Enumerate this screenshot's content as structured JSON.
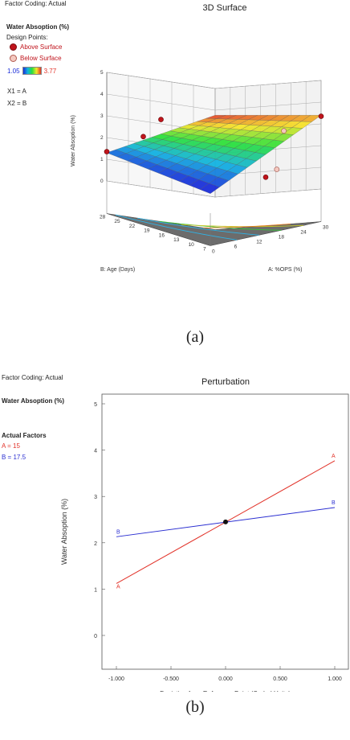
{
  "panel_a": {
    "factor_coding": "Factor Coding: Actual",
    "response_title": "Water Absoption (%)",
    "design_points_label": "Design Points:",
    "above_label": "Above Surface",
    "below_label": "Below Surface",
    "range_min": "1.05",
    "range_max": "3.77",
    "x1_label": "X1 = A",
    "x2_label": "X2 = B",
    "caption": "(a)",
    "colors": {
      "above": "#c0141c",
      "below": "#f4c9c0",
      "range_min": "#1a2dd8",
      "range_max": "#e2332a"
    }
  },
  "panel_b": {
    "factor_coding": "Factor Coding: Actual",
    "response_title": "Water Absoption (%)",
    "actual_factors_label": "Actual Factors",
    "factor_a": "A = 15",
    "factor_b": "B = 17.5",
    "caption": "(b)",
    "colors": {
      "a": "#e2332a",
      "b": "#2b2fd1"
    }
  },
  "chart_data": [
    {
      "type": "surface3d",
      "title": "3D Surface",
      "zlabel": "Water Absoption (%)",
      "xlabel": "A: %OPS (%)",
      "ylabel": "B: Age (Days)",
      "x_ticks": [
        "0",
        "6",
        "12",
        "18",
        "24",
        "30"
      ],
      "y_ticks": [
        "7",
        "10",
        "13",
        "16",
        "19",
        "22",
        "25",
        "28"
      ],
      "z_ticks": [
        "0",
        "1",
        "2",
        "3",
        "4",
        "5"
      ],
      "x_range": [
        0,
        30
      ],
      "y_range": [
        7,
        28
      ],
      "z_range": [
        0,
        5
      ],
      "surface_corners": {
        "x0_y7": 0.9,
        "x30_y7": 3.4,
        "x0_y28": 1.3,
        "x30_y28": 3.77
      },
      "design_points_above": [
        {
          "x": 0,
          "y": 28,
          "z": 1.35
        },
        {
          "x": 6,
          "y": 25,
          "z": 2.35
        },
        {
          "x": 15,
          "y": 28,
          "z": 3.2
        },
        {
          "x": 30,
          "y": 7,
          "z": 3.35
        },
        {
          "x": 15,
          "y": 7,
          "z": 1.1
        }
      ],
      "design_points_below": [
        {
          "x": 24,
          "y": 10,
          "z": 2.9
        },
        {
          "x": 18,
          "y": 7,
          "z": 1.35
        }
      ]
    },
    {
      "type": "line",
      "title": "Perturbation",
      "xlabel": "Deviation from Reference Point (Coded Units)",
      "ylabel": "Water Absoption (%)",
      "x_ticks": [
        "-1.000",
        "-0.500",
        "0.000",
        "0.500",
        "1.000"
      ],
      "y_ticks": [
        "0",
        "1",
        "2",
        "3",
        "4",
        "5"
      ],
      "xlim": [
        -1,
        1
      ],
      "ylim": [
        0,
        5
      ],
      "series": [
        {
          "name": "A",
          "x": [
            -1,
            1
          ],
          "values": [
            1.12,
            3.77
          ]
        },
        {
          "name": "B",
          "x": [
            -1,
            1
          ],
          "values": [
            2.13,
            2.76
          ]
        }
      ],
      "reference_point": {
        "x": 0,
        "y": 2.45
      }
    }
  ]
}
